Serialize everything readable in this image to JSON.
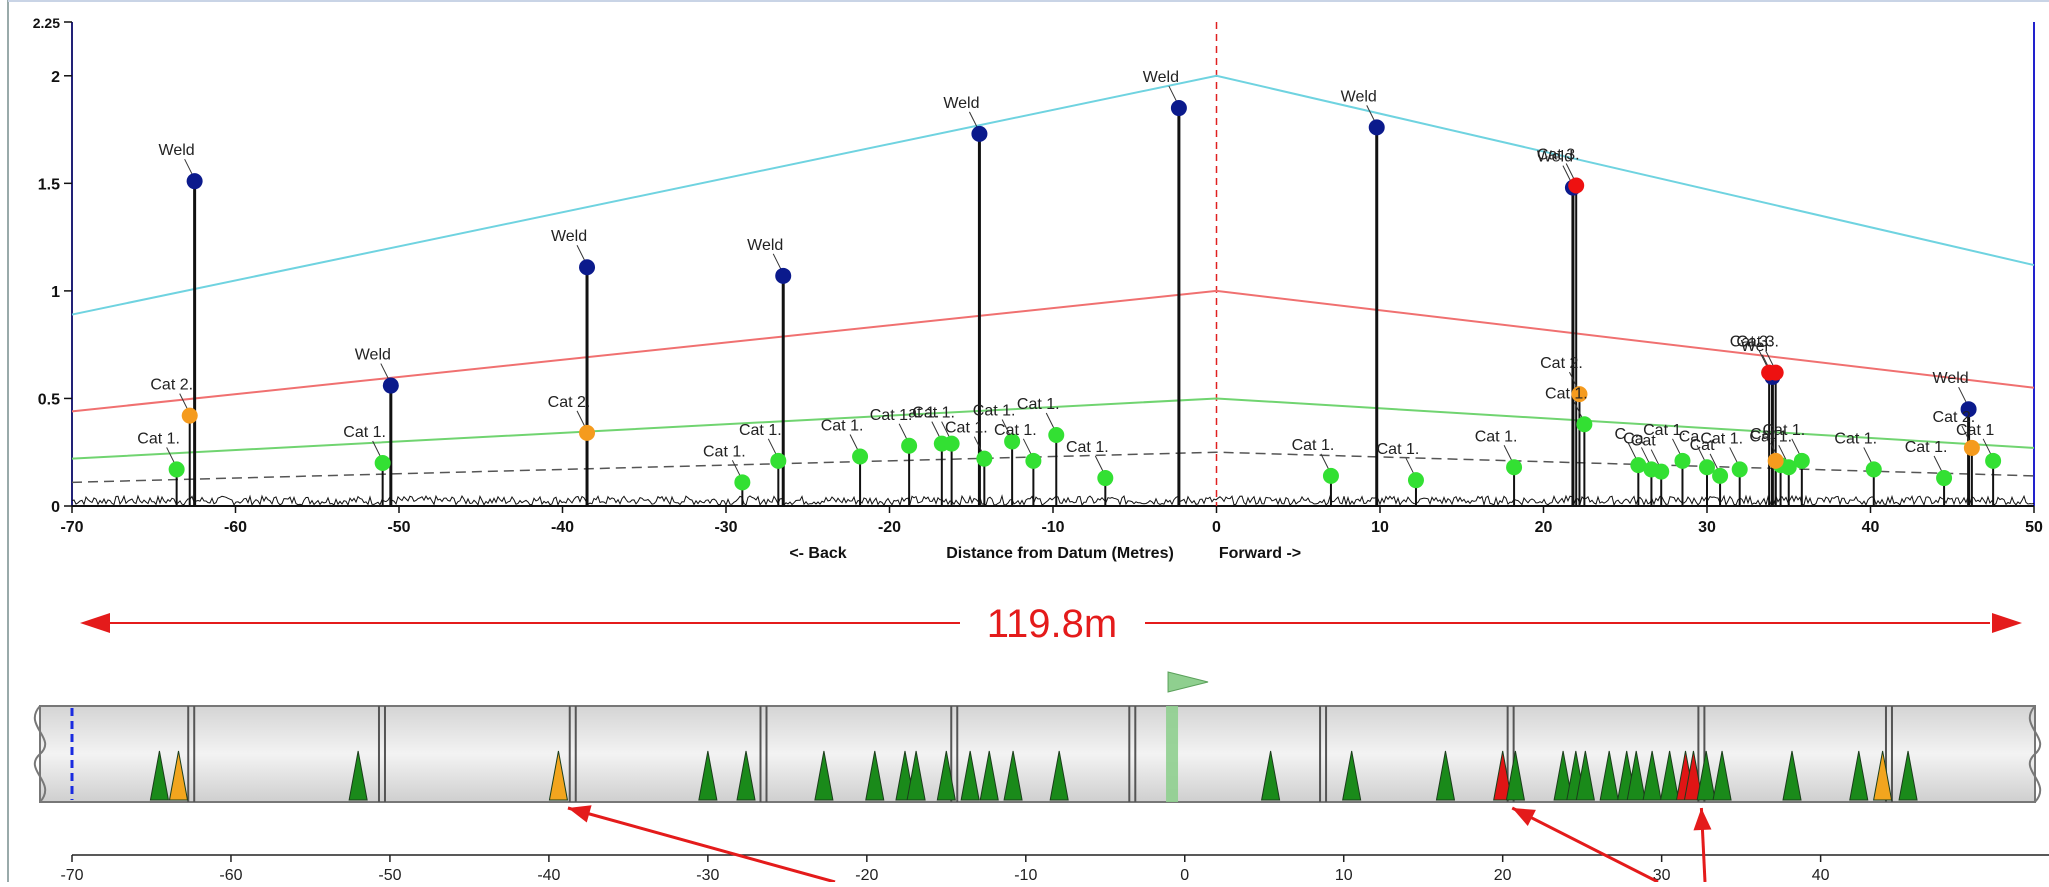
{
  "chart_data": [
    {
      "type": "scatter",
      "title": "",
      "xlabel": "Distance from Datum (Metres)",
      "x_direction_labels": {
        "back": "<- Back",
        "forward": "Forward ->"
      },
      "ylabel": "",
      "xlim": [
        -70,
        50
      ],
      "ylim": [
        0,
        2.25
      ],
      "x_ticks": [
        "-70",
        "-60",
        "-50",
        "-40",
        "-30",
        "-20",
        "-10",
        "0",
        "10",
        "20",
        "30",
        "40",
        "50"
      ],
      "y_ticks": [
        "0",
        "0.5",
        "1",
        "1.5",
        "2",
        "2.25"
      ],
      "datum_x": 0,
      "threshold_lines": [
        {
          "color": "#6fd3e0",
          "points": [
            [
              -70,
              0.89
            ],
            [
              0,
              2.0
            ],
            [
              50,
              1.12
            ]
          ]
        },
        {
          "color": "#f07070",
          "points": [
            [
              -70,
              0.44
            ],
            [
              0,
              1.0
            ],
            [
              50,
              0.55
            ]
          ]
        },
        {
          "color": "#70d470",
          "points": [
            [
              -70,
              0.22
            ],
            [
              0,
              0.5
            ],
            [
              50,
              0.27
            ]
          ]
        },
        {
          "color": "#555555",
          "dashed": true,
          "points": [
            [
              -70,
              0.11
            ],
            [
              0,
              0.25
            ],
            [
              50,
              0.14
            ]
          ]
        }
      ],
      "series": [
        {
          "name": "Weld",
          "color": "#0b1a8c",
          "points": [
            {
              "x": -62.5,
              "y": 1.51,
              "label": "Weld"
            },
            {
              "x": -50.5,
              "y": 0.56,
              "label": "Weld"
            },
            {
              "x": -38.5,
              "y": 1.11,
              "label": "Weld"
            },
            {
              "x": -26.5,
              "y": 1.07,
              "label": "Weld"
            },
            {
              "x": -14.5,
              "y": 1.73,
              "label": "Weld"
            },
            {
              "x": -2.3,
              "y": 1.85,
              "label": "Weld"
            },
            {
              "x": 9.8,
              "y": 1.76,
              "label": "Weld"
            },
            {
              "x": 21.8,
              "y": 1.48,
              "label": "Weld"
            },
            {
              "x": 34.0,
              "y": 0.6,
              "label": "Wel"
            },
            {
              "x": 46.0,
              "y": 0.45,
              "label": "Weld"
            }
          ]
        },
        {
          "name": "Cat 1.",
          "color": "#33e033",
          "points": [
            {
              "x": -63.6,
              "y": 0.17,
              "label": "Cat 1."
            },
            {
              "x": -51.0,
              "y": 0.2,
              "label": "Cat 1."
            },
            {
              "x": -29.0,
              "y": 0.11,
              "label": "Cat 1."
            },
            {
              "x": -26.8,
              "y": 0.21,
              "label": "Cat 1."
            },
            {
              "x": -21.8,
              "y": 0.23,
              "label": "Cat 1."
            },
            {
              "x": -18.8,
              "y": 0.28,
              "label": "Cat 1."
            },
            {
              "x": -16.8,
              "y": 0.29,
              "label": "at 1."
            },
            {
              "x": -16.2,
              "y": 0.29,
              "label": "Cat 1."
            },
            {
              "x": -14.2,
              "y": 0.22,
              "label": "Cat 1."
            },
            {
              "x": -12.5,
              "y": 0.3,
              "label": "Cat 1."
            },
            {
              "x": -11.2,
              "y": 0.21,
              "label": "Cat 1."
            },
            {
              "x": -9.8,
              "y": 0.33,
              "label": "Cat 1."
            },
            {
              "x": -6.8,
              "y": 0.13,
              "label": "Cat 1."
            },
            {
              "x": 7.0,
              "y": 0.14,
              "label": "Cat 1."
            },
            {
              "x": 12.2,
              "y": 0.12,
              "label": "Cat 1."
            },
            {
              "x": 18.2,
              "y": 0.18,
              "label": "Cat 1."
            },
            {
              "x": 22.5,
              "y": 0.38,
              "label": "Cat 1."
            },
            {
              "x": 25.8,
              "y": 0.19,
              "label": "C"
            },
            {
              "x": 26.6,
              "y": 0.17,
              "label": "Ca"
            },
            {
              "x": 27.2,
              "y": 0.16,
              "label": "Cat"
            },
            {
              "x": 28.5,
              "y": 0.21,
              "label": "Cat 1."
            },
            {
              "x": 30.0,
              "y": 0.18,
              "label": "Ca"
            },
            {
              "x": 30.8,
              "y": 0.14,
              "label": "Cat"
            },
            {
              "x": 32.0,
              "y": 0.17,
              "label": "Cat 1."
            },
            {
              "x": 34.5,
              "y": 0.19,
              "label": "Cat"
            },
            {
              "x": 35.0,
              "y": 0.18,
              "label": "Cat 1."
            },
            {
              "x": 35.8,
              "y": 0.21,
              "label": "Cat 1."
            },
            {
              "x": 40.2,
              "y": 0.17,
              "label": "Cat 1."
            },
            {
              "x": 44.5,
              "y": 0.13,
              "label": "Cat 1."
            },
            {
              "x": 47.5,
              "y": 0.21,
              "label": "Cat 1"
            }
          ]
        },
        {
          "name": "Cat 2.",
          "color": "#f59b1e",
          "points": [
            {
              "x": -62.8,
              "y": 0.42,
              "label": "Cat 2."
            },
            {
              "x": -38.5,
              "y": 0.34,
              "label": "Cat 2."
            },
            {
              "x": 22.2,
              "y": 0.52,
              "label": "Cat 2."
            },
            {
              "x": 34.2,
              "y": 0.21,
              "label": ""
            },
            {
              "x": 46.2,
              "y": 0.27,
              "label": "Cat 2."
            }
          ]
        },
        {
          "name": "Cat 3.",
          "color": "#ee1111",
          "points": [
            {
              "x": 22.0,
              "y": 1.49,
              "label": "Cat 3."
            },
            {
              "x": 33.8,
              "y": 0.62,
              "label": "Cat 3."
            },
            {
              "x": 34.2,
              "y": 0.62,
              "label": "Cat 3."
            }
          ]
        }
      ]
    },
    {
      "type": "pipe-schematic",
      "length_label": "119.8m",
      "xlim": [
        -70,
        46
      ],
      "x_ticks": [
        "-70",
        "-60",
        "-50",
        "-40",
        "-30",
        "-20",
        "-10",
        "0",
        "10",
        "20",
        "30",
        "40"
      ],
      "weld_positions": [
        -62.5,
        -50.5,
        -38.5,
        -26.5,
        -14.5,
        -3.3,
        8.7,
        20.5,
        32.5,
        44.3
      ],
      "datum_marker_x": -0.8,
      "markers": [
        {
          "x": -64.5,
          "category": "Cat 1."
        },
        {
          "x": -63.3,
          "category": "Cat 2."
        },
        {
          "x": -52.0,
          "category": "Cat 1."
        },
        {
          "x": -39.4,
          "category": "Cat 2."
        },
        {
          "x": -30.0,
          "category": "Cat 1."
        },
        {
          "x": -27.6,
          "category": "Cat 1."
        },
        {
          "x": -22.7,
          "category": "Cat 1."
        },
        {
          "x": -19.5,
          "category": "Cat 1."
        },
        {
          "x": -17.6,
          "category": "Cat 1."
        },
        {
          "x": -16.9,
          "category": "Cat 1."
        },
        {
          "x": -15.0,
          "category": "Cat 1."
        },
        {
          "x": -13.5,
          "category": "Cat 1."
        },
        {
          "x": -12.3,
          "category": "Cat 1."
        },
        {
          "x": -10.8,
          "category": "Cat 1."
        },
        {
          "x": -7.9,
          "category": "Cat 1."
        },
        {
          "x": 5.4,
          "category": "Cat 1."
        },
        {
          "x": 10.5,
          "category": "Cat 1."
        },
        {
          "x": 16.4,
          "category": "Cat 1."
        },
        {
          "x": 20.0,
          "category": "Cat 3."
        },
        {
          "x": 20.8,
          "category": "Cat 1."
        },
        {
          "x": 23.8,
          "category": "Cat 1."
        },
        {
          "x": 24.6,
          "category": "Cat 1."
        },
        {
          "x": 25.2,
          "category": "Cat 1."
        },
        {
          "x": 26.7,
          "category": "Cat 1."
        },
        {
          "x": 27.8,
          "category": "Cat 1."
        },
        {
          "x": 28.4,
          "category": "Cat 1."
        },
        {
          "x": 29.4,
          "category": "Cat 1."
        },
        {
          "x": 30.5,
          "category": "Cat 1."
        },
        {
          "x": 31.5,
          "category": "Cat 3."
        },
        {
          "x": 32.0,
          "category": "Cat 3."
        },
        {
          "x": 32.8,
          "category": "Cat 1."
        },
        {
          "x": 33.8,
          "category": "Cat 1."
        },
        {
          "x": 38.2,
          "category": "Cat 1."
        },
        {
          "x": 42.4,
          "category": "Cat 1."
        },
        {
          "x": 43.9,
          "category": "Cat 2."
        },
        {
          "x": 45.5,
          "category": "Cat 1."
        }
      ],
      "arrow_targets_x": [
        -38.8,
        20.6,
        32.5
      ],
      "category_colors": {
        "Cat 1.": "#1a8a1a",
        "Cat 2.": "#f2a51e",
        "Cat 3.": "#e01515"
      }
    }
  ]
}
